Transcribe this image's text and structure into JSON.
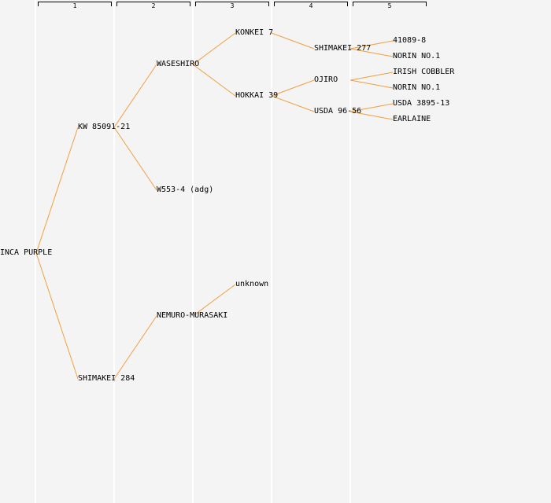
{
  "colors": {
    "edge": "#f0a040",
    "background": "#f4f4f4",
    "column_line": "#ffffff",
    "bracket": "#000000"
  },
  "generations": [
    "1",
    "2",
    "3",
    "4",
    "5"
  ],
  "nodes": {
    "inca_purple": "INCA PURPLE",
    "kw_85091_21": "KW 85091-21",
    "shimakei_284": "SHIMAKEI 284",
    "waseshiro": "WASESHIRO",
    "w553_4": "W553-4 (adg)",
    "nemuro_murasaki": "NEMURO-MURASAKI",
    "konkei_7": "KONKEI 7",
    "hokkai_39": "HOKKAI 39",
    "unknown": "unknown",
    "shimakei_277": "SHIMAKEI 277",
    "ojiro": "OJIRO",
    "usda_96_56": "USDA 96-56",
    "g5_41089_8": "41089-8",
    "norin_no1_a": "NORIN NO.1",
    "irish_cobbler": "IRISH COBBLER",
    "norin_no1_b": "NORIN NO.1",
    "usda_3895_13": "USDA 3895-13",
    "earlaine": "EARLAINE"
  },
  "edges": [
    [
      "inca_purple",
      "kw_85091_21"
    ],
    [
      "inca_purple",
      "shimakei_284"
    ],
    [
      "kw_85091_21",
      "waseshiro"
    ],
    [
      "kw_85091_21",
      "w553_4"
    ],
    [
      "shimakei_284",
      "nemuro_murasaki"
    ],
    [
      "waseshiro",
      "konkei_7"
    ],
    [
      "waseshiro",
      "hokkai_39"
    ],
    [
      "nemuro_murasaki",
      "unknown"
    ],
    [
      "konkei_7",
      "shimakei_277"
    ],
    [
      "hokkai_39",
      "ojiro"
    ],
    [
      "hokkai_39",
      "usda_96_56"
    ],
    [
      "shimakei_277",
      "g5_41089_8"
    ],
    [
      "shimakei_277",
      "norin_no1_a"
    ],
    [
      "ojiro",
      "irish_cobbler"
    ],
    [
      "ojiro",
      "norin_no1_b"
    ],
    [
      "usda_96_56",
      "usda_3895_13"
    ],
    [
      "usda_96_56",
      "earlaine"
    ]
  ]
}
